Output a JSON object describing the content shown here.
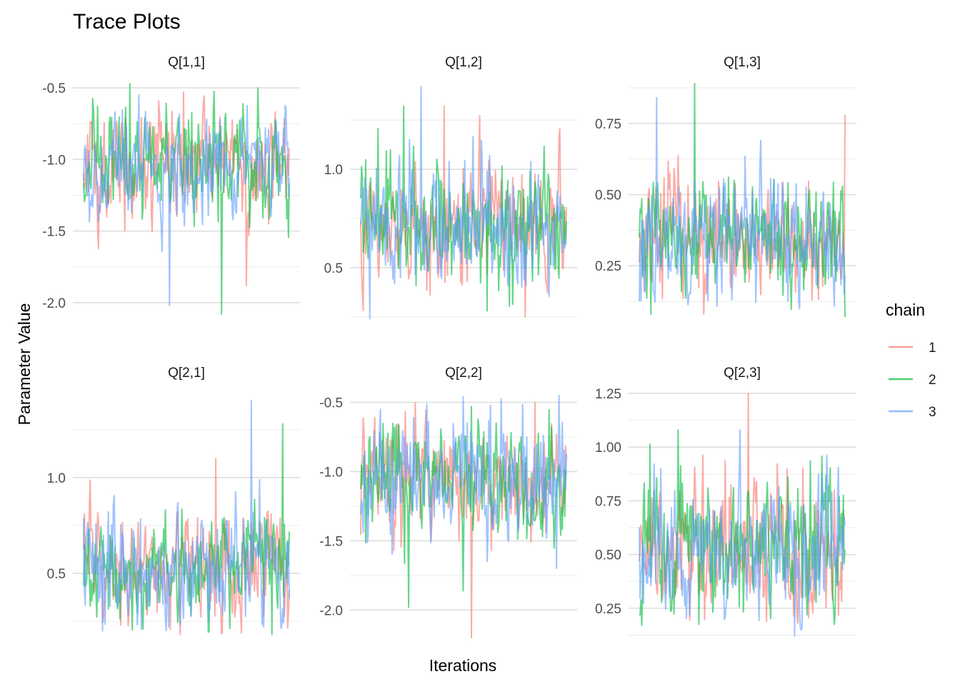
{
  "chart_data": {
    "type": "line",
    "title": "Trace Plots",
    "xlabel": "Iterations",
    "ylabel": "Parameter Value",
    "grid": true,
    "legend": {
      "title": "chain",
      "placement": "right",
      "entries": [
        {
          "label": "1",
          "color": "#F8766D"
        },
        {
          "label": "2",
          "color": "#00BA38"
        },
        {
          "label": "3",
          "color": "#619CFF"
        }
      ]
    },
    "series_colors": [
      "#F8766D",
      "#00BA38",
      "#619CFF"
    ],
    "n_iterations": 250,
    "panels": [
      {
        "label": "Q[1,1]",
        "ylim": [
          -2.14,
          -0.45
        ],
        "ticks": [
          -0.5,
          -1.0,
          -1.5,
          -2.0
        ],
        "tick_labels": [
          "-0.5",
          "-1.0",
          "-1.5",
          "-2.0"
        ],
        "series": [
          {
            "chain": "1",
            "mean": -1.05,
            "sd": 0.17,
            "min": -1.88,
            "max": -0.53
          },
          {
            "chain": "2",
            "mean": -1.05,
            "sd": 0.17,
            "min": -2.08,
            "max": -0.47
          },
          {
            "chain": "3",
            "mean": -1.05,
            "sd": 0.17,
            "min": -2.02,
            "max": -0.55
          }
        ]
      },
      {
        "label": "Q[1,2]",
        "ylim": [
          0.22,
          1.45
        ],
        "ticks": [
          1.0,
          0.5
        ],
        "tick_labels": [
          "1.0",
          "0.5"
        ],
        "series": [
          {
            "chain": "1",
            "mean": 0.72,
            "sd": 0.15,
            "min": 0.25,
            "max": 1.32
          },
          {
            "chain": "2",
            "mean": 0.72,
            "sd": 0.15,
            "min": 0.28,
            "max": 1.32
          },
          {
            "chain": "3",
            "mean": 0.72,
            "sd": 0.15,
            "min": 0.24,
            "max": 1.42
          }
        ]
      },
      {
        "label": "Q[1,3]",
        "ylim": [
          0.05,
          0.9
        ],
        "ticks": [
          0.75,
          0.5,
          0.25
        ],
        "tick_labels": [
          "0.75",
          "0.50",
          "0.25"
        ],
        "series": [
          {
            "chain": "1",
            "mean": 0.34,
            "sd": 0.1,
            "min": 0.08,
            "max": 0.78
          },
          {
            "chain": "2",
            "mean": 0.34,
            "sd": 0.1,
            "min": 0.07,
            "max": 0.89
          },
          {
            "chain": "3",
            "mean": 0.34,
            "sd": 0.1,
            "min": 0.1,
            "max": 0.84
          }
        ]
      },
      {
        "label": "Q[2,1]",
        "ylim": [
          0.15,
          1.45
        ],
        "ticks": [
          1.0,
          0.5
        ],
        "tick_labels": [
          "1.0",
          "0.5"
        ],
        "series": [
          {
            "chain": "1",
            "mean": 0.53,
            "sd": 0.13,
            "min": 0.18,
            "max": 1.1
          },
          {
            "chain": "2",
            "mean": 0.53,
            "sd": 0.13,
            "min": 0.18,
            "max": 1.28
          },
          {
            "chain": "3",
            "mean": 0.53,
            "sd": 0.13,
            "min": 0.2,
            "max": 1.4
          }
        ]
      },
      {
        "label": "Q[2,2]",
        "ylim": [
          -2.22,
          -0.42
        ],
        "ticks": [
          -0.5,
          -1.0,
          -1.5,
          -2.0
        ],
        "tick_labels": [
          "-0.5",
          "-1.0",
          "-1.5",
          "-2.0"
        ],
        "series": [
          {
            "chain": "1",
            "mean": -1.05,
            "sd": 0.2,
            "min": -2.2,
            "max": -0.5
          },
          {
            "chain": "2",
            "mean": -1.05,
            "sd": 0.2,
            "min": -1.98,
            "max": -0.53
          },
          {
            "chain": "3",
            "mean": -1.05,
            "sd": 0.2,
            "min": -1.7,
            "max": -0.45
          }
        ]
      },
      {
        "label": "Q[2,3]",
        "ylim": [
          0.1,
          1.26
        ],
        "ticks": [
          1.25,
          1.0,
          0.75,
          0.5,
          0.25
        ],
        "tick_labels": [
          "1.25",
          "1.00",
          "0.75",
          "0.50",
          "0.25"
        ],
        "series": [
          {
            "chain": "1",
            "mean": 0.52,
            "sd": 0.15,
            "min": 0.18,
            "max": 1.25
          },
          {
            "chain": "2",
            "mean": 0.52,
            "sd": 0.15,
            "min": 0.17,
            "max": 1.08
          },
          {
            "chain": "3",
            "mean": 0.52,
            "sd": 0.15,
            "min": 0.12,
            "max": 1.08
          }
        ]
      }
    ]
  }
}
